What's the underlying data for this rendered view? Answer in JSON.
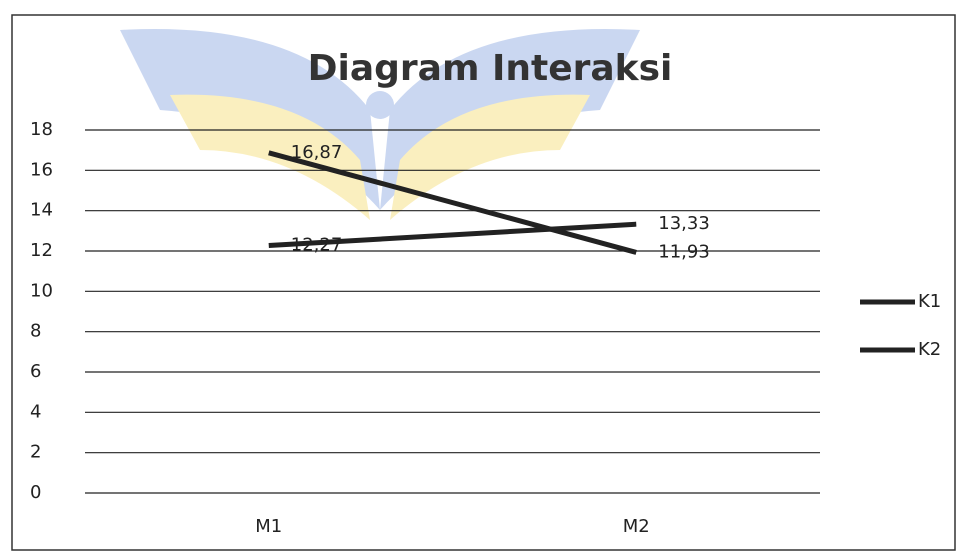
{
  "chart_data": {
    "type": "line",
    "title": "Diagram Interaksi",
    "categories": [
      "M1",
      "M2"
    ],
    "series": [
      {
        "name": "K1",
        "color": "#222222",
        "values": [
          16.87,
          11.93
        ],
        "value_labels": [
          "16,87",
          "11,93"
        ]
      },
      {
        "name": "K2",
        "color": "#222222",
        "values": [
          12.27,
          13.33
        ],
        "value_labels": [
          "12,27",
          "13,33"
        ]
      }
    ],
    "ylim": [
      0,
      18
    ],
    "yticks": [
      0,
      2,
      4,
      6,
      8,
      10,
      12,
      14,
      16,
      18
    ],
    "grid": true,
    "legend": "right"
  }
}
